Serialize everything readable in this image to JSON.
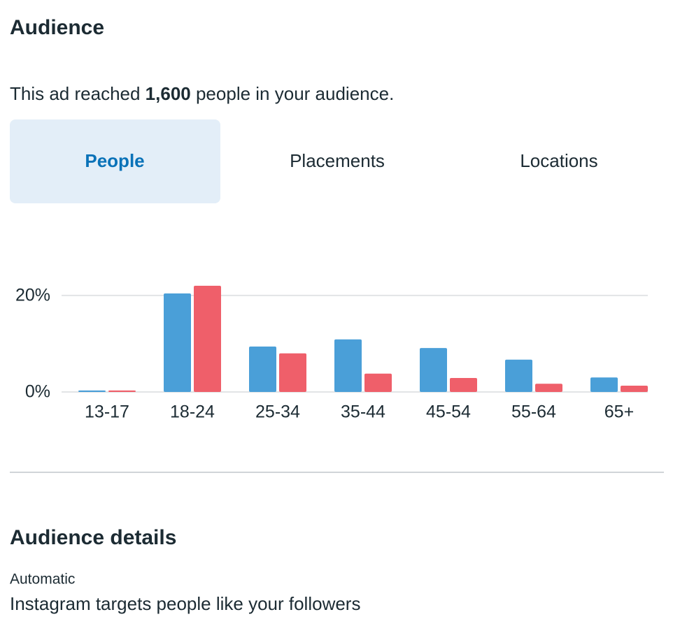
{
  "header": {
    "title": "Audience"
  },
  "reach": {
    "before": "This ad reached ",
    "count": "1,600",
    "after": " people in your audience."
  },
  "tabs": [
    "People",
    "Placements",
    "Locations"
  ],
  "chart_data": {
    "type": "bar",
    "categories": [
      "13-17",
      "18-24",
      "25-34",
      "35-44",
      "45-54",
      "55-64",
      "65+"
    ],
    "series": [
      {
        "color": "#4a9fd8",
        "values": [
          0.3,
          20.4,
          9.4,
          10.9,
          9.1,
          6.7,
          3.0
        ]
      },
      {
        "color": "#ef5f6a",
        "values": [
          0.3,
          22.0,
          8.0,
          3.8,
          2.9,
          1.7,
          1.3
        ]
      }
    ],
    "ylim": [
      0,
      33
    ],
    "yticks": [
      {
        "value": 0,
        "label": "0%"
      },
      {
        "value": 20,
        "label": "20%"
      }
    ],
    "grid": true
  },
  "details": {
    "title": "Audience details",
    "label": "Automatic",
    "text": "Instagram targets people like your followers"
  }
}
